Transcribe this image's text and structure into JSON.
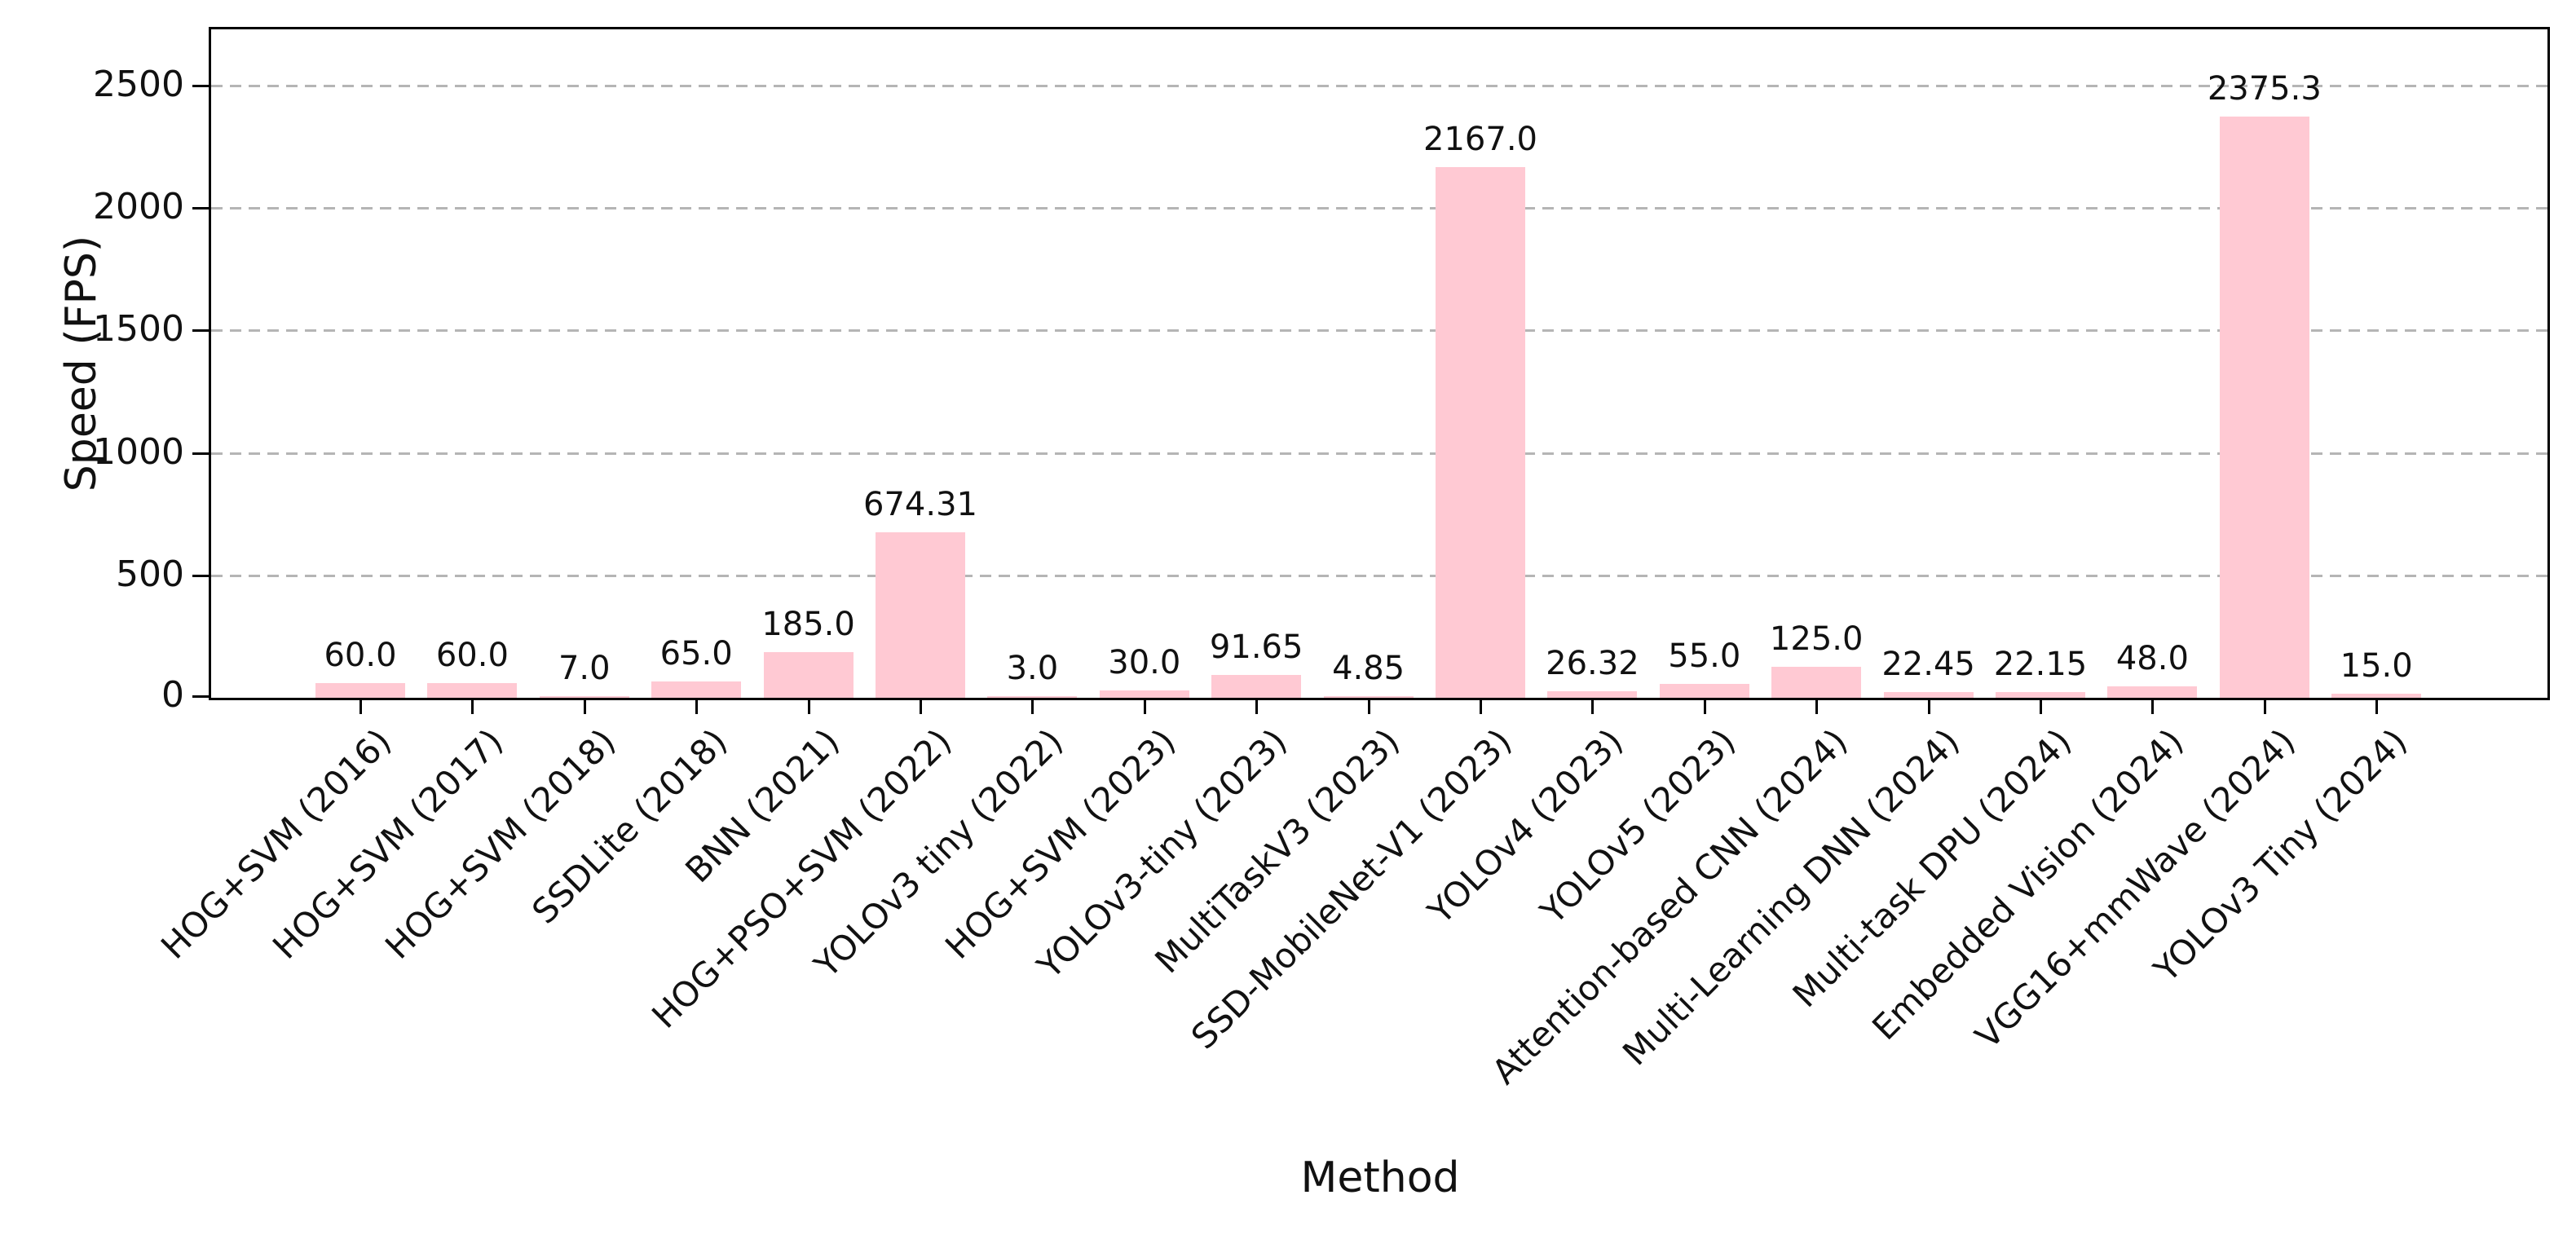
{
  "chart_data": {
    "type": "bar",
    "title": "",
    "xlabel": "Method",
    "ylabel": "Speed (FPS)",
    "categories": [
      "HOG+SVM (2016)",
      "HOG+SVM (2017)",
      "HOG+SVM (2018)",
      "SSDLite (2018)",
      "BNN (2021)",
      "HOG+PSO+SVM (2022)",
      "YOLOv3 tiny (2022)",
      "HOG+SVM (2023)",
      "YOLOv3-tiny (2023)",
      "MultiTaskV3 (2023)",
      "SSD-MobileNet-V1 (2023)",
      "YOLOv4 (2023)",
      "YOLOv5 (2023)",
      "Attention-based CNN (2024)",
      "Multi-Learning DNN (2024)",
      "Multi-task DPU (2024)",
      "Embedded Vision (2024)",
      "VGG16+mmWave (2024)",
      "YOLOv3 Tiny (2024)"
    ],
    "values": [
      60.0,
      60.0,
      7.0,
      65.0,
      185.0,
      674.31,
      3.0,
      30.0,
      91.65,
      4.85,
      2167.0,
      26.32,
      55.0,
      125.0,
      22.45,
      22.15,
      48.0,
      2375.3,
      15.0
    ],
    "value_labels": [
      "60.0",
      "60.0",
      "7.0",
      "65.0",
      "185.0",
      "674.31",
      "3.0",
      "30.0",
      "91.65",
      "4.85",
      "2167.0",
      "26.32",
      "55.0",
      "125.0",
      "22.45",
      "22.15",
      "48.0",
      "2375.3",
      "15.0"
    ],
    "yticks": [
      0,
      500,
      1000,
      1500,
      2000,
      2500
    ],
    "ytick_labels": [
      "0",
      "500",
      "1000",
      "1500",
      "2000",
      "2500"
    ],
    "ylim": [
      0,
      2730
    ],
    "bar_color": "#ffc9d3",
    "grid": "dashed-horizontal",
    "legend": "none"
  }
}
